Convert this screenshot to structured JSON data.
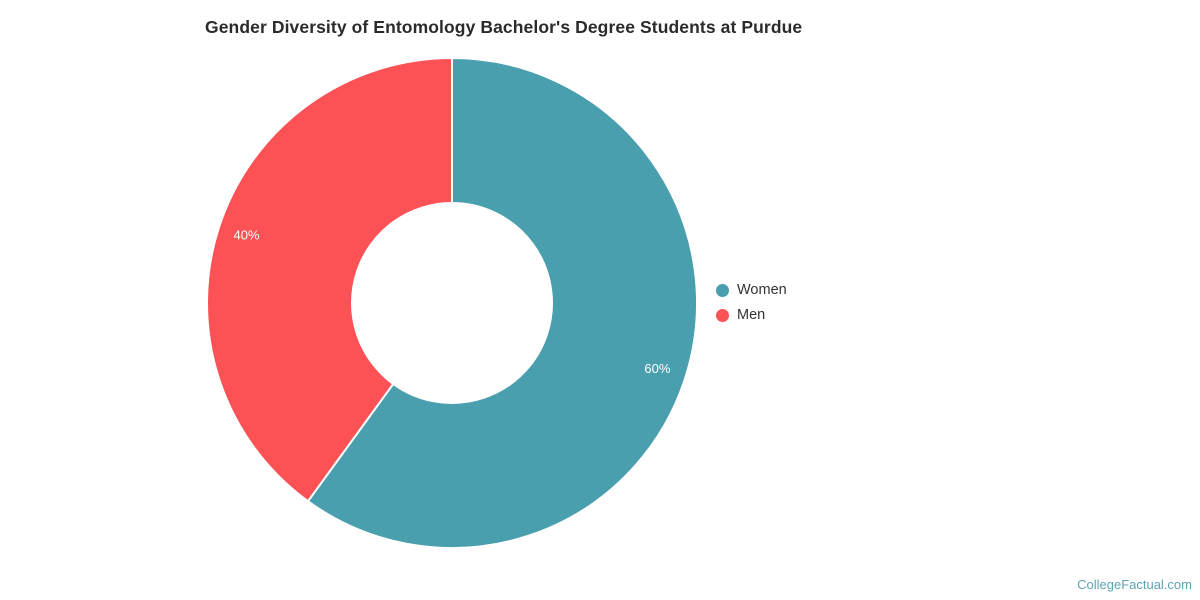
{
  "chart_data": {
    "type": "pie",
    "subtype": "donut",
    "title": "Gender Diversity of Entomology Bachelor's Degree Students at Purdue",
    "series": [
      {
        "name": "Women",
        "value": 60,
        "label": "60%",
        "color": "#4A9FAE"
      },
      {
        "name": "Men",
        "value": 40,
        "label": "40%",
        "color": "#FC5256"
      }
    ],
    "start_angle_deg": 0,
    "direction": "clockwise",
    "inner_radius_ratio": 0.41,
    "label_color": "#FFFFFF",
    "legend_position": "right",
    "legend_text_color": "#333333"
  },
  "watermark": {
    "text": "CollegeFactual.com",
    "color": "#5ba4b2"
  }
}
